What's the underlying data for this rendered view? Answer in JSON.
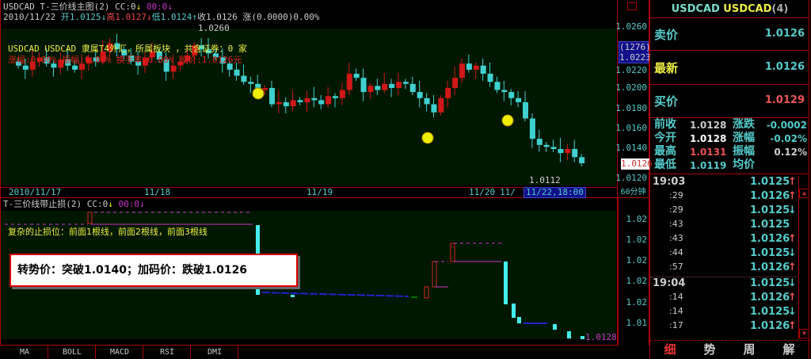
{
  "main_chart": {
    "title": "USDCAD T-三价线主图(2) CC:0",
    "cc_arrow": "↓",
    "oo_label": "00:0",
    "oo_arrow": "↓",
    "date": "2010/11/22",
    "open": "开1.0125",
    "open_arrow": "↓",
    "high": "高1.0127",
    "high_arrow": "↓",
    "low": "低1.0124",
    "low_arrow": "↑",
    "close": "收1.0126",
    "change": "涨(0.0000)0.00%",
    "info_line1": "USDCAD USDCAD 隶属T4外汇，所属板块 ，共含证券：0 家",
    "info_line2": "涨幅:0.00% 振幅:0.03% 换手率:0.00% 股价:1.0126元",
    "max_label": "1.0260",
    "min_label": "1.0112",
    "y_ticks": [
      "1.0260",
      "1.0220",
      "1.0200",
      "1.0180",
      "1.0160",
      "1.0140",
      "1.0120"
    ],
    "cursor_box": {
      "count": "(1276)",
      "price": "1.0223"
    },
    "last_price_tag": "1.0126",
    "x_ticks": [
      "2010/11/17",
      "11/18",
      "11/19",
      "11/20",
      "11/"
    ],
    "cursor_date": "11/22,18:00",
    "period": "60分钟",
    "closes": [
      1.0222,
      1.0218,
      1.0226,
      1.023,
      1.0224,
      1.022,
      1.0228,
      1.0222,
      1.0218,
      1.0224,
      1.023,
      1.0226,
      1.0236,
      1.0244,
      1.0238,
      1.0232,
      1.0226,
      1.0222,
      1.023,
      1.0236,
      1.0228,
      1.0216,
      1.0222,
      1.0226,
      1.0232,
      1.0242,
      1.0238,
      1.0234,
      1.023,
      1.0224,
      1.0218,
      1.0212,
      1.0206,
      1.0204,
      1.0198,
      1.02,
      1.0184,
      1.0186,
      1.0182,
      1.0188,
      1.0186,
      1.019,
      1.0188,
      1.0184,
      1.0192,
      1.019,
      1.0198,
      1.0214,
      1.021,
      1.0196,
      1.0202,
      1.0198,
      1.0204,
      1.02,
      1.0206,
      1.0204,
      1.0196,
      1.019,
      1.0184,
      1.0176,
      1.019,
      1.02,
      1.021,
      1.0224,
      1.0218,
      1.0222,
      1.0214,
      1.0206,
      1.0198,
      1.0196,
      1.019,
      1.0186,
      1.017,
      1.015,
      1.0144,
      1.0142,
      1.014,
      1.0136,
      1.014,
      1.0132,
      1.0126
    ],
    "colors": {
      "up": "#d01818",
      "down": "#40d0d0",
      "bg": "#001800"
    }
  },
  "sub_chart": {
    "title": "T-三价线带止损(2) CC:0",
    "cc_arrow": "↓",
    "oo_label": "00:0",
    "oo_arrow": "↓",
    "note": "复杂的止损位：前面1根线，前面2根线，前面3根线",
    "y_ticks": [
      "1.02",
      "1.02",
      "1.02",
      "1.02",
      "1.02",
      "1.01"
    ],
    "last_label": "1.0128",
    "callout": "转势价：突破1.0140；加码价：跌破1.0126"
  },
  "indicator_tabs": [
    "MA",
    "BOLL",
    "MACD",
    "RSI",
    "DMI"
  ],
  "quote": {
    "symbol": "USDCAD",
    "name": "USDCAD",
    "suffix": "(4)",
    "ask_label": "卖价",
    "ask": "1.0126",
    "last_label": "最新",
    "last": "1.0126",
    "bid_label": "买价",
    "bid": "1.0129",
    "stats": [
      {
        "l1": "前收",
        "v1": "1.0128",
        "l2": "涨跌",
        "v2": "-0.0002"
      },
      {
        "l1": "今开",
        "v1": "1.0128",
        "l2": "涨幅",
        "v2": "-0.02%"
      },
      {
        "l1": "最高",
        "v1": "1.0131",
        "l2": "振幅",
        "v2": "0.12%"
      },
      {
        "l1": "最低",
        "v1": "1.0119",
        "l2": "均价",
        "v2": ""
      }
    ]
  },
  "ticks": [
    {
      "time": "19:03",
      "price": "1.0125",
      "dir": "up"
    },
    {
      "time": ":29",
      "price": "1.0126",
      "dir": "up"
    },
    {
      "time": ":29",
      "price": "1.0125",
      "dir": "down"
    },
    {
      "time": ":43",
      "price": "1.0125",
      "dir": ""
    },
    {
      "time": ":43",
      "price": "1.0126",
      "dir": "up"
    },
    {
      "time": ":44",
      "price": "1.0125",
      "dir": "down"
    },
    {
      "time": ":57",
      "price": "1.0126",
      "dir": "up"
    },
    {
      "time": "19:04",
      "price": "1.0125",
      "dir": "down"
    },
    {
      "time": ":14",
      "price": "1.0126",
      "dir": "up"
    },
    {
      "time": ":14",
      "price": "1.0125",
      "dir": "down"
    },
    {
      "time": ":17",
      "price": "1.0126",
      "dir": "up"
    }
  ],
  "bottom_tabs": [
    "细",
    "势",
    "周",
    "解"
  ]
}
